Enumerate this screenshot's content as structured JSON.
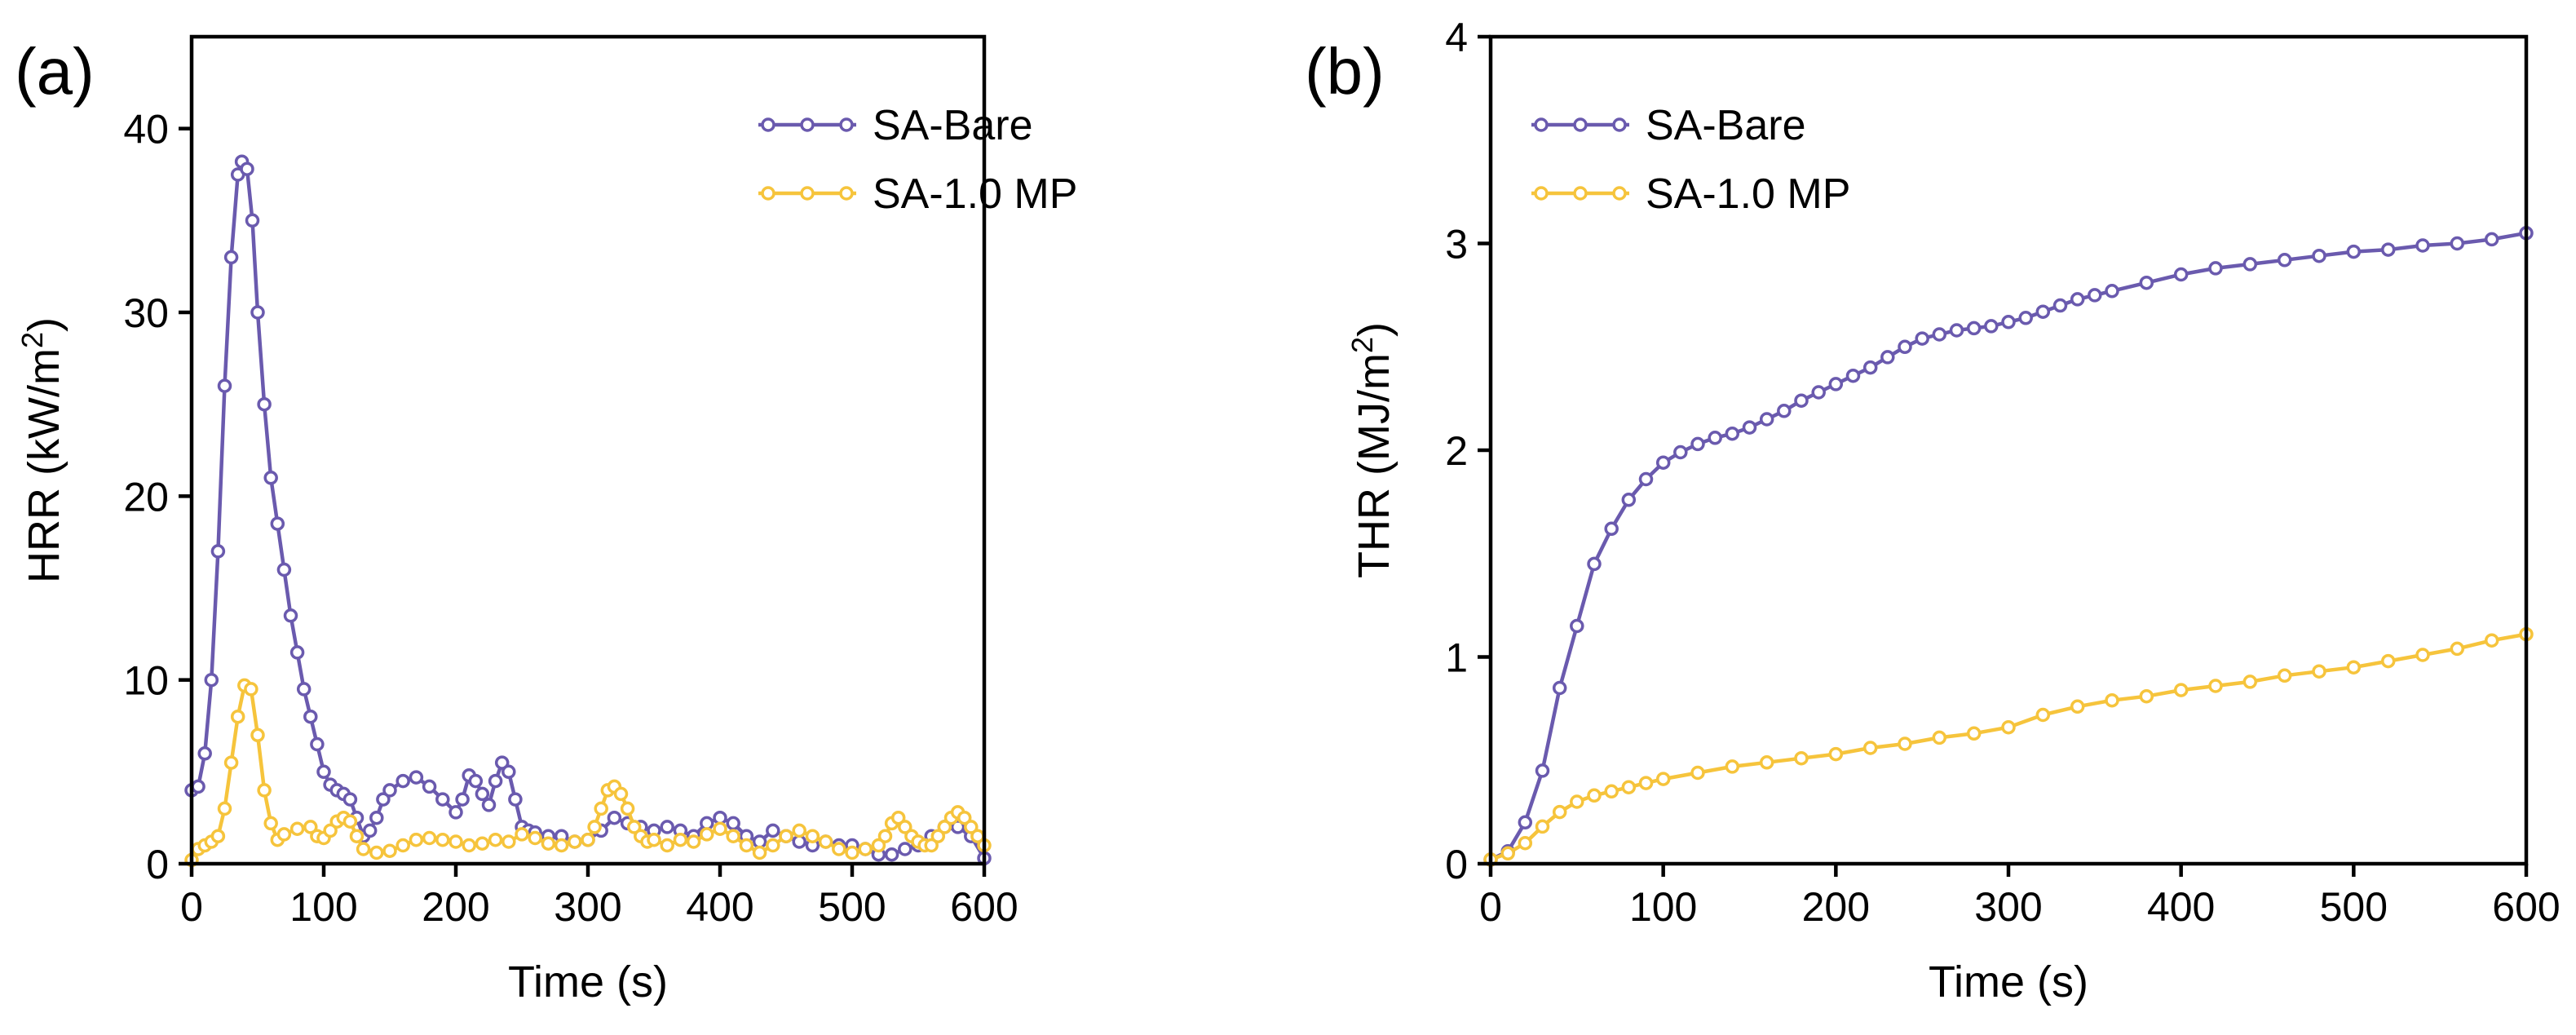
{
  "chart_data": [
    {
      "type": "line",
      "panel_label": "(a)",
      "xlabel": "Time (s)",
      "ylabel_main": "HRR (kW/m",
      "ylabel_sup": "2",
      "ylabel_close": ")",
      "xlim": [
        0,
        600
      ],
      "ylim": [
        0,
        45
      ],
      "xticks": [
        0,
        100,
        200,
        300,
        400,
        500,
        600
      ],
      "yticks": [
        0,
        10,
        20,
        30,
        40
      ],
      "legend_position": "top-right",
      "series": [
        {
          "name": "SA-Bare",
          "color": "#6a5aae",
          "x": [
            0,
            5,
            10,
            15,
            20,
            25,
            30,
            35,
            38,
            42,
            46,
            50,
            55,
            60,
            65,
            70,
            75,
            80,
            85,
            90,
            95,
            100,
            105,
            110,
            115,
            120,
            125,
            130,
            135,
            140,
            145,
            150,
            160,
            170,
            180,
            190,
            200,
            205,
            210,
            215,
            220,
            225,
            230,
            235,
            240,
            245,
            250,
            255,
            260,
            270,
            280,
            290,
            300,
            310,
            320,
            330,
            340,
            350,
            360,
            370,
            380,
            390,
            400,
            410,
            420,
            430,
            440,
            450,
            460,
            470,
            480,
            490,
            500,
            510,
            520,
            530,
            540,
            550,
            560,
            570,
            575,
            580,
            590,
            600
          ],
          "values": [
            4.0,
            4.2,
            6.0,
            10.0,
            17.0,
            26.0,
            33.0,
            37.5,
            38.2,
            37.8,
            35.0,
            30.0,
            25.0,
            21.0,
            18.5,
            16.0,
            13.5,
            11.5,
            9.5,
            8.0,
            6.5,
            5.0,
            4.3,
            4.0,
            3.8,
            3.5,
            2.5,
            1.5,
            1.8,
            2.5,
            3.5,
            4.0,
            4.5,
            4.7,
            4.2,
            3.5,
            2.8,
            3.5,
            4.8,
            4.5,
            3.8,
            3.2,
            4.5,
            5.5,
            5.0,
            3.5,
            2.0,
            1.8,
            1.7,
            1.5,
            1.5,
            1.2,
            1.3,
            1.8,
            2.5,
            2.2,
            2.0,
            1.8,
            2.0,
            1.8,
            1.5,
            2.2,
            2.5,
            2.2,
            1.5,
            1.2,
            1.8,
            1.5,
            1.2,
            1.0,
            1.2,
            1.0,
            1.0,
            0.8,
            0.5,
            0.5,
            0.8,
            1.0,
            1.5,
            2.0,
            2.2,
            2.0,
            1.5,
            0.3
          ]
        },
        {
          "name": "SA-1.0 MP",
          "color": "#f6c43c",
          "x": [
            0,
            5,
            10,
            15,
            20,
            25,
            30,
            35,
            40,
            45,
            50,
            55,
            60,
            65,
            70,
            80,
            90,
            95,
            100,
            105,
            110,
            115,
            120,
            125,
            130,
            140,
            150,
            160,
            170,
            180,
            190,
            200,
            210,
            220,
            230,
            240,
            250,
            260,
            270,
            280,
            290,
            300,
            305,
            310,
            315,
            320,
            325,
            330,
            335,
            340,
            345,
            350,
            360,
            370,
            380,
            390,
            400,
            410,
            420,
            430,
            440,
            450,
            460,
            470,
            480,
            490,
            500,
            510,
            520,
            525,
            530,
            535,
            540,
            545,
            550,
            555,
            560,
            565,
            570,
            575,
            580,
            585,
            590,
            595,
            600
          ],
          "values": [
            0.2,
            0.8,
            1.0,
            1.2,
            1.5,
            3.0,
            5.5,
            8.0,
            9.7,
            9.5,
            7.0,
            4.0,
            2.2,
            1.3,
            1.6,
            1.9,
            2.0,
            1.5,
            1.4,
            1.8,
            2.3,
            2.5,
            2.3,
            1.5,
            0.8,
            0.6,
            0.7,
            1.0,
            1.3,
            1.4,
            1.3,
            1.2,
            1.0,
            1.1,
            1.3,
            1.2,
            1.6,
            1.4,
            1.1,
            1.0,
            1.2,
            1.3,
            2.0,
            3.0,
            4.0,
            4.2,
            3.8,
            3.0,
            2.0,
            1.5,
            1.2,
            1.3,
            1.0,
            1.3,
            1.2,
            1.6,
            1.9,
            1.5,
            1.0,
            0.6,
            1.0,
            1.5,
            1.8,
            1.5,
            1.2,
            0.8,
            0.6,
            0.8,
            1.0,
            1.5,
            2.2,
            2.5,
            2.0,
            1.5,
            1.2,
            1.0,
            1.0,
            1.5,
            2.0,
            2.5,
            2.8,
            2.5,
            2.0,
            1.5,
            1.0
          ]
        }
      ]
    },
    {
      "type": "line",
      "panel_label": "(b)",
      "xlabel": "Time (s)",
      "ylabel_main": "THR (MJ/m",
      "ylabel_sup": "2",
      "ylabel_close": ")",
      "xlim": [
        0,
        600
      ],
      "ylim": [
        0,
        4
      ],
      "xticks": [
        0,
        100,
        200,
        300,
        400,
        500,
        600
      ],
      "yticks": [
        0,
        1,
        2,
        3,
        4
      ],
      "legend_position": "top-left",
      "series": [
        {
          "name": "SA-Bare",
          "color": "#6a5aae",
          "x": [
            0,
            10,
            20,
            30,
            40,
            50,
            60,
            70,
            80,
            90,
            100,
            110,
            120,
            130,
            140,
            150,
            160,
            170,
            180,
            190,
            200,
            210,
            220,
            230,
            240,
            250,
            260,
            270,
            280,
            290,
            300,
            310,
            320,
            330,
            340,
            350,
            360,
            380,
            400,
            420,
            440,
            460,
            480,
            500,
            520,
            540,
            560,
            580,
            600
          ],
          "values": [
            0.02,
            0.06,
            0.2,
            0.45,
            0.85,
            1.15,
            1.45,
            1.62,
            1.76,
            1.86,
            1.94,
            1.99,
            2.03,
            2.06,
            2.08,
            2.11,
            2.15,
            2.19,
            2.24,
            2.28,
            2.32,
            2.36,
            2.4,
            2.45,
            2.5,
            2.54,
            2.56,
            2.58,
            2.59,
            2.6,
            2.62,
            2.64,
            2.67,
            2.7,
            2.73,
            2.75,
            2.77,
            2.81,
            2.85,
            2.88,
            2.9,
            2.92,
            2.94,
            2.96,
            2.97,
            2.99,
            3.0,
            3.02,
            3.05
          ]
        },
        {
          "name": "SA-1.0 MP",
          "color": "#f6c43c",
          "x": [
            0,
            10,
            20,
            30,
            40,
            50,
            60,
            70,
            80,
            90,
            100,
            120,
            140,
            160,
            180,
            200,
            220,
            240,
            260,
            280,
            300,
            320,
            340,
            360,
            380,
            400,
            420,
            440,
            460,
            480,
            500,
            520,
            540,
            560,
            580,
            600
          ],
          "values": [
            0.02,
            0.05,
            0.1,
            0.18,
            0.25,
            0.3,
            0.33,
            0.35,
            0.37,
            0.39,
            0.41,
            0.44,
            0.47,
            0.49,
            0.51,
            0.53,
            0.56,
            0.58,
            0.61,
            0.63,
            0.66,
            0.72,
            0.76,
            0.79,
            0.81,
            0.84,
            0.86,
            0.88,
            0.91,
            0.93,
            0.95,
            0.98,
            1.01,
            1.04,
            1.08,
            1.11
          ]
        }
      ]
    }
  ]
}
